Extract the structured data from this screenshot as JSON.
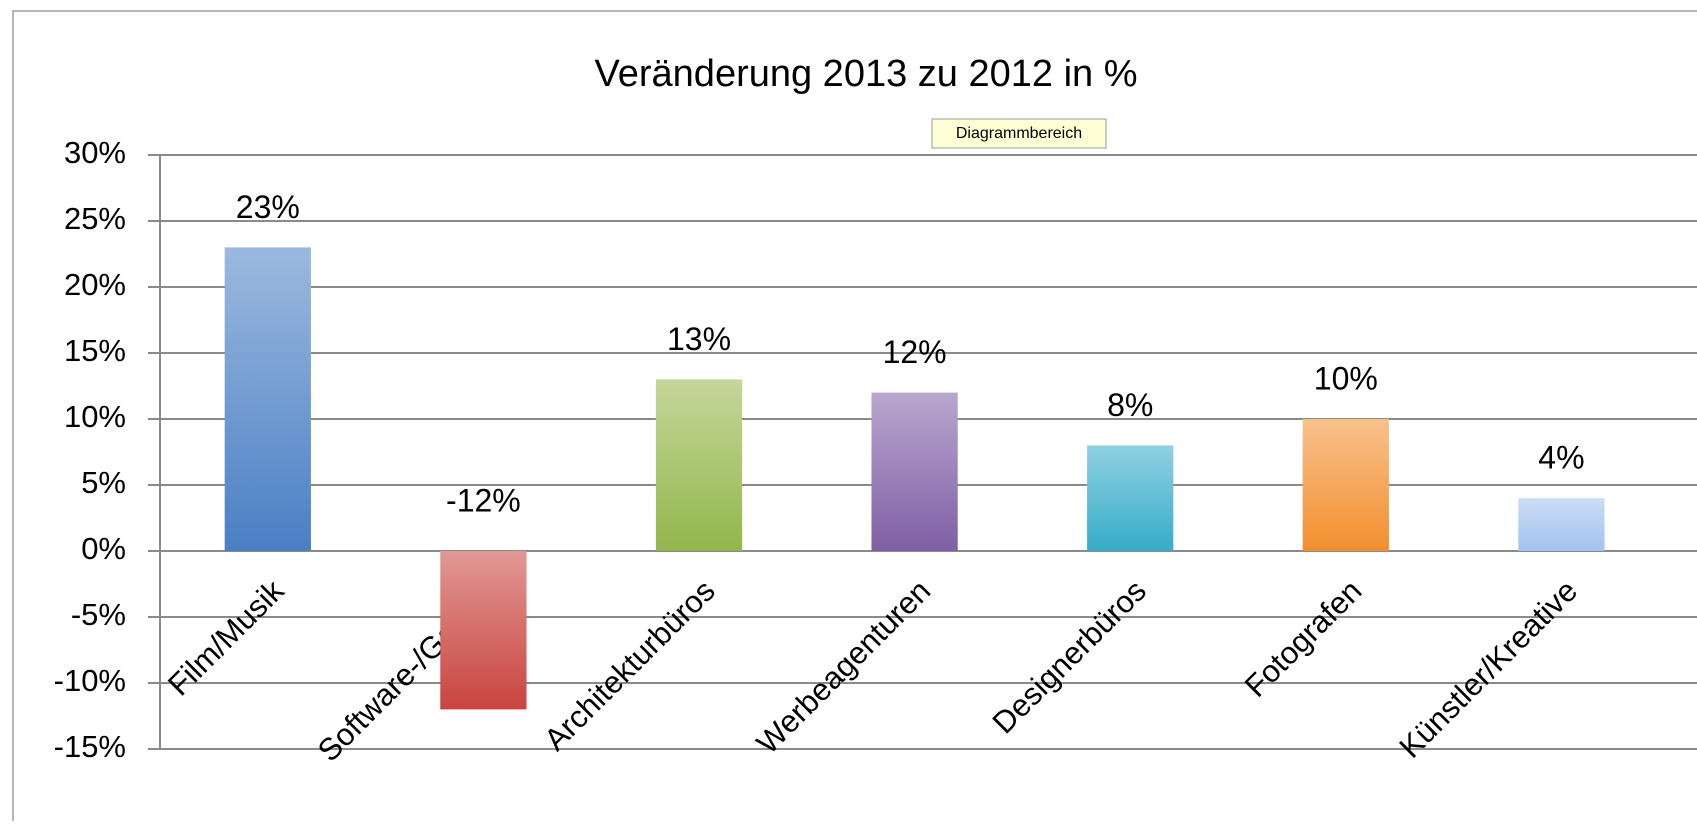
{
  "chart_data": {
    "type": "bar",
    "title": "Veränderung 2013 zu 2012 in %",
    "tooltip": "Diagrammbereich",
    "categories": [
      "Film/Musik",
      "Software-/Games",
      "Architekturbüros",
      "Werbeagenturen",
      "Designerbüros",
      "Fotografen",
      "Künstler/Kreative"
    ],
    "values": [
      23,
      -12,
      13,
      12,
      8,
      10,
      4
    ],
    "value_labels": [
      "23%",
      "-12%",
      "13%",
      "12%",
      "8%",
      "10%",
      "4%"
    ],
    "colors": [
      "#4a7fc4",
      "#c9443f",
      "#93b64a",
      "#7f5fa6",
      "#36acc9",
      "#f28f2e",
      "#a3c2ef"
    ],
    "ylim": [
      -15,
      30
    ],
    "yticks": [
      {
        "value": -15,
        "label": "-15%"
      },
      {
        "value": -10,
        "label": "-10%"
      },
      {
        "value": -5,
        "label": "-5%"
      },
      {
        "value": 0,
        "label": "0%"
      },
      {
        "value": 5,
        "label": "5%"
      },
      {
        "value": 10,
        "label": "10%"
      },
      {
        "value": 15,
        "label": "15%"
      },
      {
        "value": 20,
        "label": "20%"
      },
      {
        "value": 25,
        "label": "25%"
      },
      {
        "value": 30,
        "label": "30%"
      }
    ],
    "grid": true
  }
}
